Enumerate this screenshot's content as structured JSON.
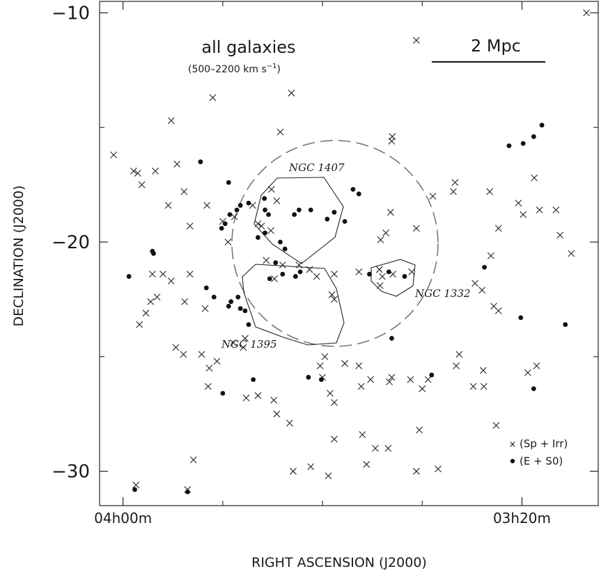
{
  "chart_data": {
    "type": "scatter",
    "xlabel": "RIGHT ASCENSION (J2000)",
    "ylabel": "DECLINATION (J2000)",
    "x_unit": "minutes of right ascension",
    "xlim": [
      4040,
      3190
    ],
    "ylim": [
      -31.5,
      -9.5
    ],
    "x_ticks": [
      {
        "value": 4000,
        "label": "04h00m"
      },
      {
        "value": 3320,
        "label": "03h20m"
      }
    ],
    "y_ticks": [
      {
        "value": -10,
        "label": "−10"
      },
      {
        "value": -20,
        "label": "−20"
      },
      {
        "value": -30,
        "label": "−30"
      }
    ],
    "annotation_title": "all galaxies",
    "annotation_range": "(500–2200 km s",
    "annotation_exp": "−1",
    "annotation_close": ")",
    "scale_bar_label": "2 Mpc",
    "group_labels": [
      {
        "name": "NGC 1407",
        "ra": 3866,
        "dec": -17.7
      },
      {
        "name": "NGC 1395",
        "ra": 3937,
        "dec": -24.5
      },
      {
        "name": "NGC 1332",
        "ra": 3308,
        "dec": -22.3
      }
    ],
    "legend_position": "bottom-right",
    "series": [
      {
        "name": "(Sp + Irr)",
        "marker": "cross",
        "points": [
          [
            3210,
            -10.0
          ],
          [
            3500,
            -11.2
          ],
          [
            3713,
            -13.5
          ],
          [
            3918,
            -14.7
          ],
          [
            3847,
            -13.7
          ],
          [
            3732,
            -15.2
          ],
          [
            3541,
            -15.4
          ],
          [
            3542,
            -15.6
          ],
          [
            4016,
            -16.2
          ],
          [
            3982,
            -16.9
          ],
          [
            3975,
            -17.0
          ],
          [
            3968,
            -17.5
          ],
          [
            3945,
            -16.9
          ],
          [
            3908,
            -16.6
          ],
          [
            3896,
            -17.8
          ],
          [
            3923,
            -18.4
          ],
          [
            3886,
            -19.3
          ],
          [
            3747,
            -17.7
          ],
          [
            3738,
            -18.2
          ],
          [
            3779,
            -18.4
          ],
          [
            3857,
            -18.4
          ],
          [
            3830,
            -19.1
          ],
          [
            3810,
            -18.9
          ],
          [
            3770,
            -19.2
          ],
          [
            3748,
            -19.5
          ],
          [
            3764,
            -19.3
          ],
          [
            3821,
            -20.0
          ],
          [
            3544,
            -18.7
          ],
          [
            3552,
            -19.6
          ],
          [
            3561,
            -19.9
          ],
          [
            3500,
            -19.4
          ],
          [
            3434,
            -17.4
          ],
          [
            3437,
            -17.8
          ],
          [
            3472,
            -18.0
          ],
          [
            3375,
            -17.8
          ],
          [
            3360,
            -19.4
          ],
          [
            3326,
            -18.3
          ],
          [
            3318,
            -18.8
          ],
          [
            3299,
            -17.2
          ],
          [
            3290,
            -18.6
          ],
          [
            3262,
            -18.6
          ],
          [
            3255,
            -19.7
          ],
          [
            3236,
            -20.5
          ],
          [
            3373,
            -20.6
          ],
          [
            3728,
            -21.0
          ],
          [
            3742,
            -21.6
          ],
          [
            3756,
            -20.8
          ],
          [
            3700,
            -21.0
          ],
          [
            3682,
            -21.2
          ],
          [
            3670,
            -21.5
          ],
          [
            3640,
            -21.4
          ],
          [
            3644,
            -22.3
          ],
          [
            3640,
            -22.5
          ],
          [
            3598,
            -21.3
          ],
          [
            3563,
            -21.2
          ],
          [
            3558,
            -21.5
          ],
          [
            3562,
            -21.9
          ],
          [
            3540,
            -21.4
          ],
          [
            3508,
            -21.3
          ],
          [
            3400,
            -21.8
          ],
          [
            3388,
            -22.1
          ],
          [
            3360,
            -23.0
          ],
          [
            3368,
            -22.8
          ],
          [
            3860,
            -22.9
          ],
          [
            3895,
            -22.6
          ],
          [
            3918,
            -21.7
          ],
          [
            3932,
            -21.4
          ],
          [
            3886,
            -21.4
          ],
          [
            3950,
            -21.4
          ],
          [
            3942,
            -22.4
          ],
          [
            3953,
            -22.6
          ],
          [
            3961,
            -23.1
          ],
          [
            3972,
            -23.6
          ],
          [
            3910,
            -24.6
          ],
          [
            3897,
            -24.9
          ],
          [
            3866,
            -24.9
          ],
          [
            3853,
            -25.5
          ],
          [
            3840,
            -25.2
          ],
          [
            3812,
            -24.4
          ],
          [
            3792,
            -24.2
          ],
          [
            3795,
            -24.6
          ],
          [
            3855,
            -26.3
          ],
          [
            3790,
            -26.8
          ],
          [
            3770,
            -26.7
          ],
          [
            3743,
            -26.9
          ],
          [
            3738,
            -27.5
          ],
          [
            3716,
            -27.9
          ],
          [
            3640,
            -27.0
          ],
          [
            3647,
            -26.6
          ],
          [
            3660,
            -25.9
          ],
          [
            3664,
            -25.4
          ],
          [
            3656,
            -25.0
          ],
          [
            3622,
            -25.3
          ],
          [
            3598,
            -25.4
          ],
          [
            3546,
            -26.1
          ],
          [
            3594,
            -26.3
          ],
          [
            3578,
            -26.0
          ],
          [
            3542,
            -25.9
          ],
          [
            3510,
            -26.0
          ],
          [
            3490,
            -26.4
          ],
          [
            3480,
            -26.0
          ],
          [
            3403,
            -26.3
          ],
          [
            3385,
            -26.3
          ],
          [
            3386,
            -25.6
          ],
          [
            3432,
            -25.4
          ],
          [
            3427,
            -24.9
          ],
          [
            3310,
            -25.7
          ],
          [
            3295,
            -25.4
          ],
          [
            3364,
            -28.0
          ],
          [
            3495,
            -28.2
          ],
          [
            3640,
            -28.6
          ],
          [
            3680,
            -29.8
          ],
          [
            3880,
            -29.5
          ],
          [
            3710,
            -30.0
          ],
          [
            3890,
            -30.8
          ],
          [
            3650,
            -30.2
          ],
          [
            3978,
            -30.6
          ],
          [
            3585,
            -29.7
          ],
          [
            3570,
            -29.0
          ],
          [
            3592,
            -28.4
          ],
          [
            3548,
            -29.0
          ],
          [
            3500,
            -30.0
          ],
          [
            3463,
            -29.9
          ]
        ]
      },
      {
        "name": "(E + S0)",
        "marker": "dot",
        "points": [
          [
            3286,
            -14.9
          ],
          [
            3300,
            -15.4
          ],
          [
            3318,
            -15.7
          ],
          [
            3342,
            -15.8
          ],
          [
            3868,
            -16.5
          ],
          [
            3820,
            -17.4
          ],
          [
            3759,
            -18.1
          ],
          [
            3700,
            -18.6
          ],
          [
            3708,
            -18.8
          ],
          [
            3652,
            -19.0
          ],
          [
            3622,
            -19.1
          ],
          [
            3608,
            -17.7
          ],
          [
            3598,
            -17.9
          ],
          [
            3680,
            -18.6
          ],
          [
            3640,
            -18.7
          ],
          [
            3752,
            -18.8
          ],
          [
            3758,
            -18.6
          ],
          [
            3786,
            -18.3
          ],
          [
            3800,
            -18.4
          ],
          [
            3806,
            -18.6
          ],
          [
            3818,
            -18.8
          ],
          [
            3826,
            -19.2
          ],
          [
            3832,
            -19.4
          ],
          [
            3770,
            -19.8
          ],
          [
            3758,
            -19.6
          ],
          [
            3724,
            -20.3
          ],
          [
            3732,
            -20.0
          ],
          [
            3740,
            -20.9
          ],
          [
            3750,
            -21.6
          ],
          [
            3728,
            -21.4
          ],
          [
            3698,
            -21.3
          ],
          [
            3706,
            -21.5
          ],
          [
            3950,
            -20.4
          ],
          [
            3948,
            -20.5
          ],
          [
            3990,
            -21.5
          ],
          [
            3858,
            -22.0
          ],
          [
            3845,
            -22.4
          ],
          [
            3820,
            -22.8
          ],
          [
            3804,
            -22.4
          ],
          [
            3800,
            -22.9
          ],
          [
            3792,
            -23.0
          ],
          [
            3786,
            -23.6
          ],
          [
            3816,
            -22.6
          ],
          [
            3547,
            -21.3
          ],
          [
            3580,
            -21.4
          ],
          [
            3520,
            -21.5
          ],
          [
            3384,
            -21.1
          ],
          [
            3542,
            -24.2
          ],
          [
            3474,
            -25.8
          ],
          [
            3300,
            -26.4
          ],
          [
            3322,
            -23.3
          ],
          [
            3246,
            -23.6
          ],
          [
            3830,
            -26.6
          ],
          [
            3778,
            -26.0
          ],
          [
            3662,
            -26.0
          ],
          [
            3684,
            -25.9
          ],
          [
            3980,
            -30.8
          ],
          [
            3890,
            -30.9
          ]
        ]
      }
    ]
  }
}
